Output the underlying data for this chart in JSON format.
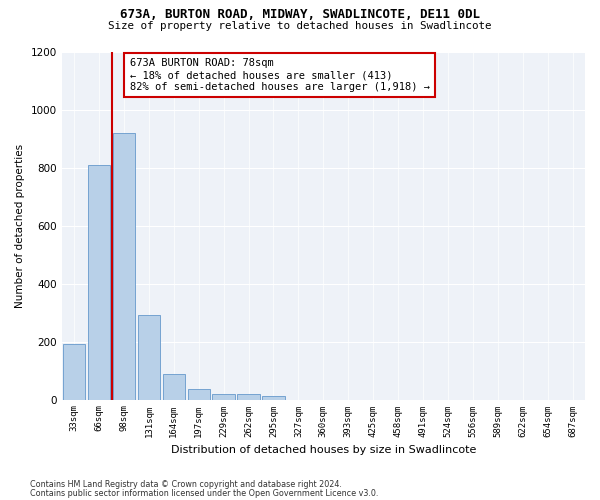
{
  "title1": "673A, BURTON ROAD, MIDWAY, SWADLINCOTE, DE11 0DL",
  "title2": "Size of property relative to detached houses in Swadlincote",
  "xlabel": "Distribution of detached houses by size in Swadlincote",
  "ylabel": "Number of detached properties",
  "bin_labels": [
    "33sqm",
    "66sqm",
    "98sqm",
    "131sqm",
    "164sqm",
    "197sqm",
    "229sqm",
    "262sqm",
    "295sqm",
    "327sqm",
    "360sqm",
    "393sqm",
    "425sqm",
    "458sqm",
    "491sqm",
    "524sqm",
    "556sqm",
    "589sqm",
    "622sqm",
    "654sqm",
    "687sqm"
  ],
  "bar_values": [
    193,
    810,
    920,
    290,
    88,
    35,
    20,
    18,
    12,
    0,
    0,
    0,
    0,
    0,
    0,
    0,
    0,
    0,
    0,
    0,
    0
  ],
  "bar_color": "#b8d0e8",
  "bar_edge_color": "#6699cc",
  "subject_line_color": "#cc0000",
  "annotation_text": "673A BURTON ROAD: 78sqm\n← 18% of detached houses are smaller (413)\n82% of semi-detached houses are larger (1,918) →",
  "annotation_box_color": "#ffffff",
  "annotation_box_edge_color": "#cc0000",
  "ylim": [
    0,
    1200
  ],
  "yticks": [
    0,
    200,
    400,
    600,
    800,
    1000,
    1200
  ],
  "footnote1": "Contains HM Land Registry data © Crown copyright and database right 2024.",
  "footnote2": "Contains public sector information licensed under the Open Government Licence v3.0.",
  "bg_color": "#eef2f8"
}
